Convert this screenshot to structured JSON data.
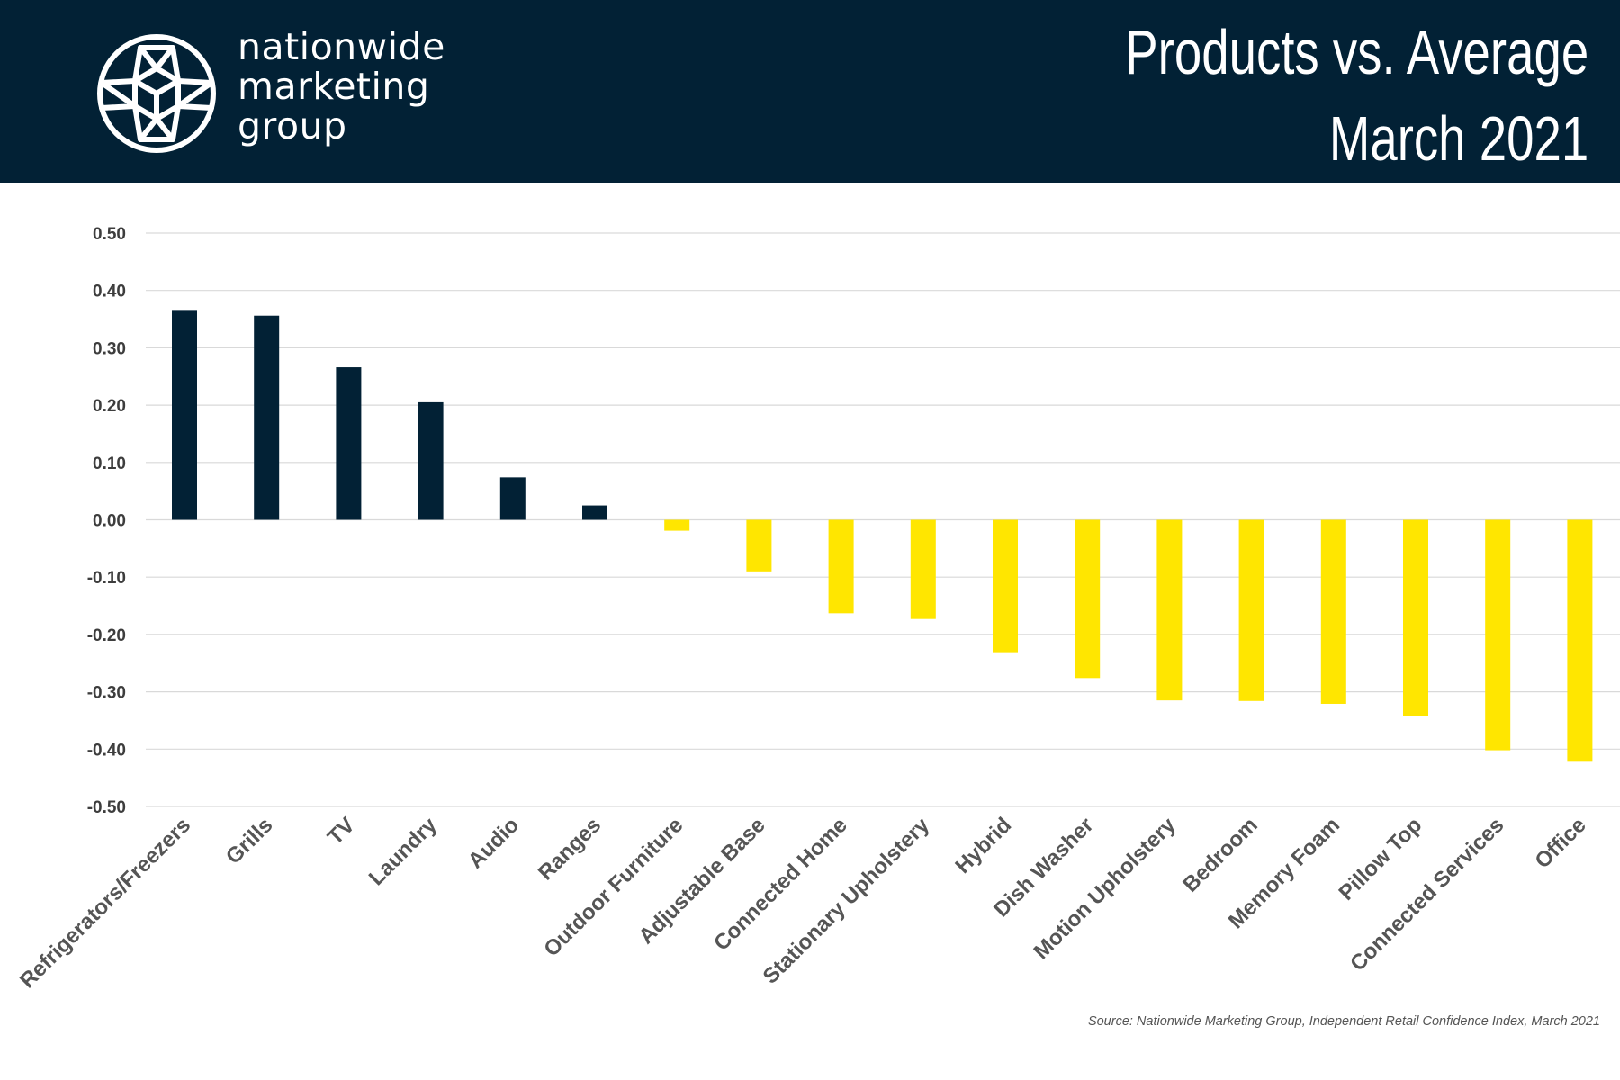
{
  "header": {
    "brand_lines": [
      "nationwide",
      "marketing",
      "group"
    ],
    "title_line1": "Products vs. Average",
    "title_line2": "March 2021",
    "logo_icon": "geodesic-cube-logo-icon",
    "background_color": "#022135"
  },
  "source": "Source: Nationwide Marketing Group, Independent Retail Confidence Index, March 2021",
  "colors": {
    "positive": "#022135",
    "negative": "#ffe600",
    "grid": "#d9d9d9",
    "tick_text": "#3d3d3d",
    "category_text": "#555555"
  },
  "chart_data": {
    "type": "bar",
    "title": "Products vs. Average",
    "subtitle": "March 2021",
    "xlabel": "",
    "ylabel": "",
    "ylim": [
      -0.5,
      0.5
    ],
    "ytick_values": [
      0.5,
      0.4,
      0.3,
      0.2,
      0.1,
      0.0,
      -0.1,
      -0.2,
      -0.3,
      -0.4,
      -0.5
    ],
    "ytick_labels": [
      "0.50",
      "0.40",
      "0.30",
      "0.20",
      "0.10",
      "0.00",
      "-0.10",
      "-0.20",
      "-0.30",
      "-0.40",
      "-0.50"
    ],
    "grid": true,
    "legend": "none",
    "categories": [
      "Refrigerators/Freezers",
      "Grills",
      "TV",
      "Laundry",
      "Audio",
      "Ranges",
      "Outdoor Furniture",
      "Adjustable Base",
      "Connected Home",
      "Stationary Upholstery",
      "Hybrid",
      "Dish Washer",
      "Motion Upholstery",
      "Bedroom",
      "Memory Foam",
      "Pillow Top",
      "Connected Services",
      "Office"
    ],
    "values": [
      0.366,
      0.356,
      0.266,
      0.205,
      0.074,
      0.025,
      -0.019,
      -0.09,
      -0.163,
      -0.173,
      -0.231,
      -0.276,
      -0.315,
      -0.316,
      -0.321,
      -0.342,
      -0.402,
      -0.422
    ]
  }
}
